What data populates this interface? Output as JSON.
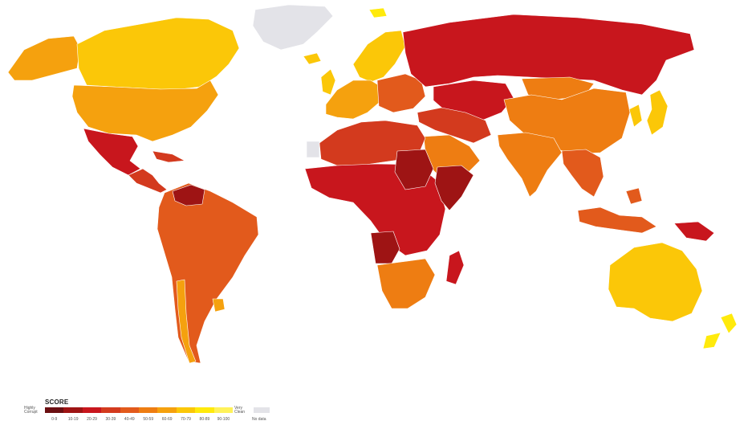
{
  "colors": {
    "no_data": "#e3e3e8",
    "scale": [
      "#6b0f12",
      "#9e1414",
      "#c8161d",
      "#d33a1e",
      "#e25a1c",
      "#ee7d12",
      "#f5a10e",
      "#fbc708",
      "#ffea0c",
      "#fff25a"
    ]
  },
  "map": {
    "regions": [
      {
        "id": "russia",
        "fill": "#c8161d"
      },
      {
        "id": "north-america-canada",
        "fill": "#fbc708"
      },
      {
        "id": "alaska",
        "fill": "#f5a10e"
      },
      {
        "id": "usa",
        "fill": "#f5a10e"
      },
      {
        "id": "greenland",
        "fill": "#e3e3e8"
      },
      {
        "id": "mexico",
        "fill": "#c8161d"
      },
      {
        "id": "central-america",
        "fill": "#d33a1e"
      },
      {
        "id": "south-america",
        "fill": "#e25a1c"
      },
      {
        "id": "venezuela",
        "fill": "#9e1414"
      },
      {
        "id": "uruguay",
        "fill": "#f5a10e"
      },
      {
        "id": "chile",
        "fill": "#f5a10e"
      },
      {
        "id": "scandinavia",
        "fill": "#fbc708"
      },
      {
        "id": "western-europe",
        "fill": "#f5a10e"
      },
      {
        "id": "eastern-europe",
        "fill": "#e25a1c"
      },
      {
        "id": "middle-east",
        "fill": "#d33a1e"
      },
      {
        "id": "arabia",
        "fill": "#ee7d12"
      },
      {
        "id": "north-africa",
        "fill": "#d33a1e"
      },
      {
        "id": "western-sahara",
        "fill": "#e3e3e8"
      },
      {
        "id": "central-africa",
        "fill": "#c8161d"
      },
      {
        "id": "sudan",
        "fill": "#9e1414"
      },
      {
        "id": "horn-of-africa",
        "fill": "#9e1414"
      },
      {
        "id": "angola",
        "fill": "#9e1414"
      },
      {
        "id": "southern-africa",
        "fill": "#ee7d12"
      },
      {
        "id": "madagascar",
        "fill": "#c8161d"
      },
      {
        "id": "central-asia",
        "fill": "#c8161d"
      },
      {
        "id": "china",
        "fill": "#ee7d12"
      },
      {
        "id": "mongolia",
        "fill": "#ee7d12"
      },
      {
        "id": "india",
        "fill": "#ee7d12"
      },
      {
        "id": "southeast-asia",
        "fill": "#e25a1c"
      },
      {
        "id": "korea-japan",
        "fill": "#fbc708"
      },
      {
        "id": "indonesia",
        "fill": "#e25a1c"
      },
      {
        "id": "papua",
        "fill": "#c8161d"
      },
      {
        "id": "australia",
        "fill": "#fbc708"
      },
      {
        "id": "new-zealand",
        "fill": "#ffea0c"
      },
      {
        "id": "iceland-uk",
        "fill": "#fbc708"
      },
      {
        "id": "svalbard",
        "fill": "#ffea0c"
      }
    ]
  },
  "legend": {
    "title": "SCORE",
    "low_label": "Highly Corrupt",
    "high_label": "Very Clean",
    "ranges": [
      "0-9",
      "10-19",
      "20-29",
      "30-39",
      "40-49",
      "50-59",
      "60-69",
      "70-79",
      "80-89",
      "90-100"
    ],
    "no_data_label": "No data"
  }
}
